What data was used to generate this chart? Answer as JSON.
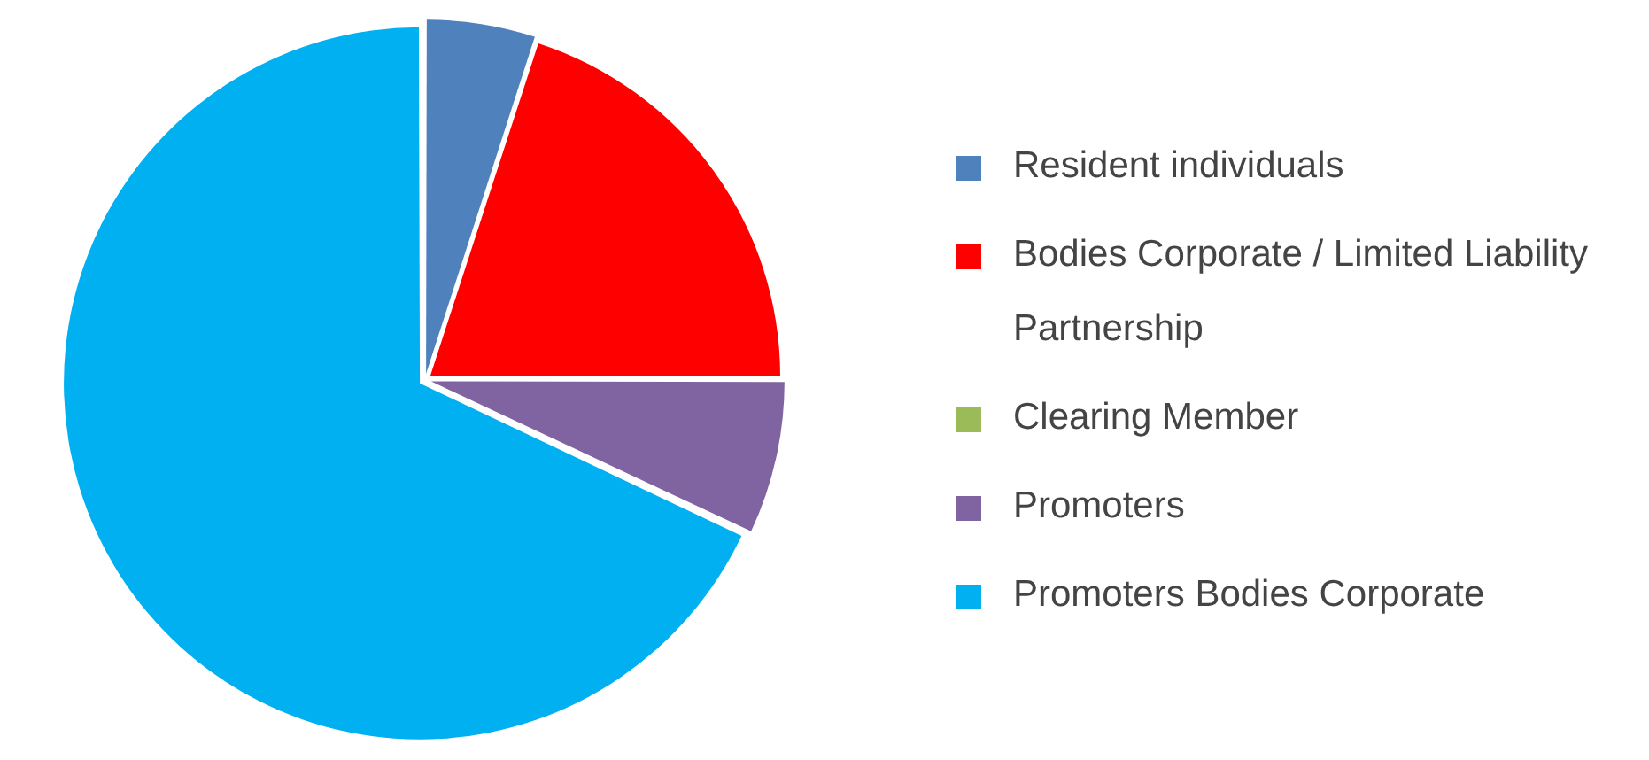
{
  "chart_data": {
    "type": "pie",
    "legend": "right",
    "categories": [
      "Resident individuals",
      "Bodies Corporate / Limited Liability Partnership",
      "Clearing Member",
      "Promoters",
      "Promoters Bodies Corporate"
    ],
    "values": [
      5,
      20,
      0,
      7,
      68
    ],
    "colors": [
      "#4f81bd",
      "#ff0000",
      "#9bbb59",
      "#8064a2",
      "#00b0f0"
    ]
  }
}
